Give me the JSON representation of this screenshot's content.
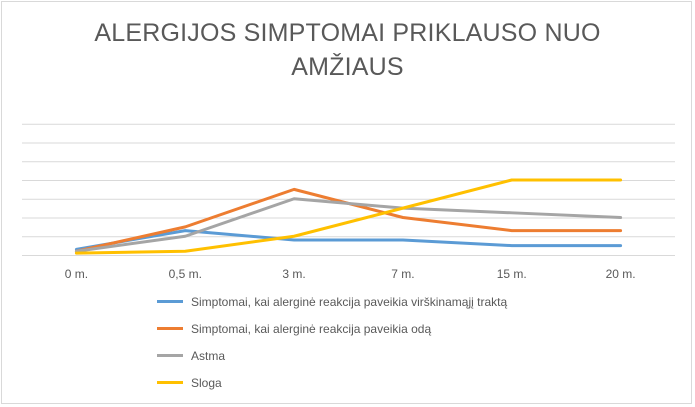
{
  "chart_data": {
    "type": "line",
    "title_lines": [
      "ALERGIJOS SIMPTOMAI PRIKLAUSO NUO",
      "AMŽIAUS"
    ],
    "categories": [
      "0 m.",
      "0,5 m.",
      "3 m.",
      "7 m.",
      "15 m.",
      "20 m."
    ],
    "ylim": [
      0,
      8
    ],
    "y_gridlines": [
      1,
      2,
      3,
      4,
      5,
      6,
      7
    ],
    "grid": true,
    "y_axis_labels_visible": false,
    "legend_position": "bottom",
    "series": [
      {
        "name": "Simptomai, kai alerginė reakcija paveikia virškinamąjį traktą",
        "color": "#5b9bd5",
        "values": [
          0.3,
          1.3,
          0.8,
          0.8,
          0.5,
          0.5
        ]
      },
      {
        "name": "Simptomai, kai alerginė reakcija paveikia odą",
        "color": "#ed7d31",
        "values": [
          0.2,
          1.5,
          3.5,
          2.0,
          1.3,
          1.3
        ]
      },
      {
        "name": "Astma",
        "color": "#a5a5a5",
        "values": [
          0.2,
          1.0,
          3.0,
          2.5,
          2.25,
          2.0
        ]
      },
      {
        "name": "Sloga",
        "color": "#ffc000",
        "values": [
          0.1,
          0.2,
          1.0,
          2.5,
          4.0,
          4.0
        ]
      }
    ]
  }
}
